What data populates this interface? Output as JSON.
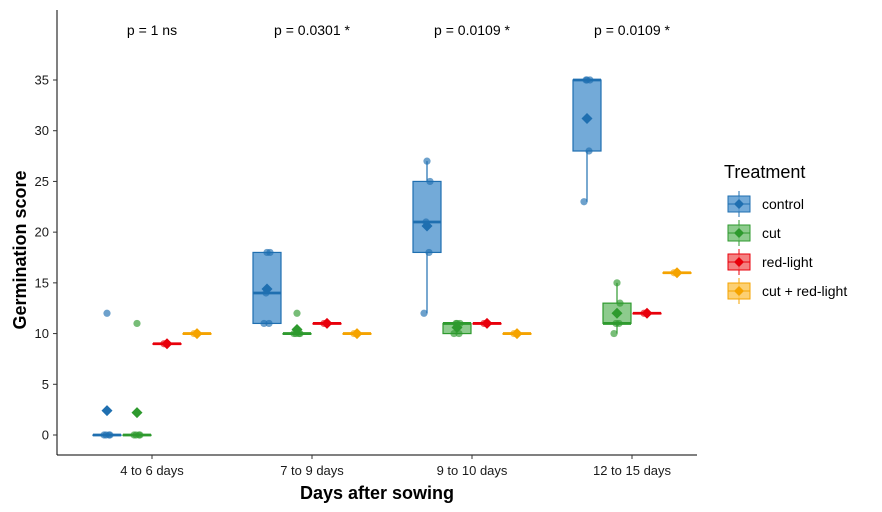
{
  "chart_data": {
    "type": "boxplot",
    "title": "",
    "xlabel": "Days after sowing",
    "ylabel": "Germination score",
    "ylim": [
      -2,
      40
    ],
    "yticks": [
      0,
      5,
      10,
      15,
      20,
      25,
      30,
      35
    ],
    "grid": false,
    "categories": [
      "4 to 6 days",
      "7 to 9 days",
      "9 to 10 days",
      "12 to 15 days"
    ],
    "pvalues": [
      "p = 1 ns",
      "p = 0.0301 *",
      "p = 0.0109 *",
      "p = 0.0109 *"
    ],
    "legend": {
      "title": "Treatment",
      "position": "right"
    },
    "series": [
      {
        "name": "control",
        "color": "#1f6fb0",
        "fill": "#5b9bd1",
        "groups": [
          {
            "min": 0,
            "q1": 0,
            "median": 0,
            "q3": 0,
            "max": 0,
            "mean": 2.4,
            "points": [
              0,
              0,
              0,
              0,
              12
            ]
          },
          {
            "min": 11,
            "q1": 11,
            "median": 14,
            "q3": 18,
            "max": 18,
            "mean": 14.4,
            "points": [
              11,
              11,
              14,
              18,
              18
            ]
          },
          {
            "min": 12,
            "q1": 18,
            "median": 21,
            "q3": 25,
            "max": 27,
            "mean": 20.6,
            "points": [
              12,
              18,
              21,
              25,
              27
            ]
          },
          {
            "min": 23,
            "q1": 28,
            "median": 35,
            "q3": 35,
            "max": 35,
            "mean": 31.2,
            "points": [
              23,
              28,
              35,
              35,
              35
            ]
          }
        ]
      },
      {
        "name": "cut",
        "color": "#2e9a2e",
        "fill": "#79c279",
        "groups": [
          {
            "min": 0,
            "q1": 0,
            "median": 0,
            "q3": 0,
            "max": 0,
            "mean": 2.2,
            "points": [
              0,
              0,
              0,
              0,
              11
            ]
          },
          {
            "min": 10,
            "q1": 10,
            "median": 10,
            "q3": 10,
            "max": 10,
            "mean": 10.4,
            "points": [
              10,
              10,
              10,
              10,
              12
            ]
          },
          {
            "min": 10,
            "q1": 10,
            "median": 11,
            "q3": 11,
            "max": 11,
            "mean": 10.6,
            "points": [
              10,
              10,
              11,
              11,
              11
            ]
          },
          {
            "min": 10,
            "q1": 11,
            "median": 11,
            "q3": 13,
            "max": 15,
            "mean": 12,
            "points": [
              10,
              11,
              11,
              13,
              15
            ]
          }
        ]
      },
      {
        "name": "red-light",
        "color": "#e8000b",
        "fill": "#f26b6b",
        "groups": [
          {
            "min": 9,
            "q1": 9,
            "median": 9,
            "q3": 9,
            "max": 9,
            "mean": 9,
            "points": [
              9
            ]
          },
          {
            "min": 11,
            "q1": 11,
            "median": 11,
            "q3": 11,
            "max": 11,
            "mean": 11,
            "points": [
              11
            ]
          },
          {
            "min": 11,
            "q1": 11,
            "median": 11,
            "q3": 11,
            "max": 11,
            "mean": 11,
            "points": [
              11
            ]
          },
          {
            "min": 12,
            "q1": 12,
            "median": 12,
            "q3": 12,
            "max": 12,
            "mean": 12,
            "points": [
              12
            ]
          }
        ]
      },
      {
        "name": "cut + red-light",
        "color": "#f5a300",
        "fill": "#fbc85a",
        "groups": [
          {
            "min": 10,
            "q1": 10,
            "median": 10,
            "q3": 10,
            "max": 10,
            "mean": 10,
            "points": [
              10
            ]
          },
          {
            "min": 10,
            "q1": 10,
            "median": 10,
            "q3": 10,
            "max": 10,
            "mean": 10,
            "points": [
              10
            ]
          },
          {
            "min": 10,
            "q1": 10,
            "median": 10,
            "q3": 10,
            "max": 10,
            "mean": 10,
            "points": [
              10
            ]
          },
          {
            "min": 16,
            "q1": 16,
            "median": 16,
            "q3": 16,
            "max": 16,
            "mean": 16,
            "points": [
              16
            ]
          }
        ]
      }
    ]
  }
}
